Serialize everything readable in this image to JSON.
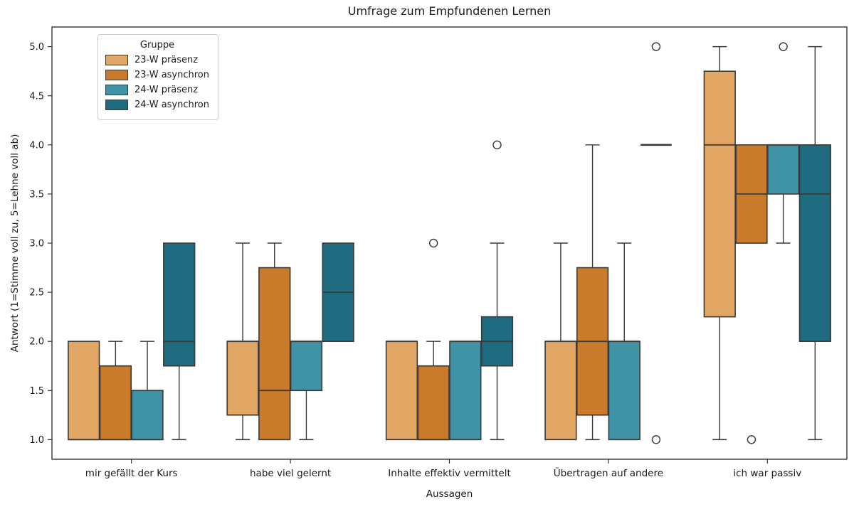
{
  "chart_data": {
    "type": "boxplot",
    "title": "Umfrage zum Empfundenen Lernen",
    "xlabel": "Aussagen",
    "ylabel": "Antwort (1=Stimme voll zu, 5=Lehne voll ab)",
    "ylim": [
      0.8,
      5.2
    ],
    "yticks": [
      1.0,
      1.5,
      2.0,
      2.5,
      3.0,
      3.5,
      4.0,
      4.5,
      5.0
    ],
    "grid": false,
    "legend": {
      "title": "Gruppe",
      "position": "upper-left"
    },
    "colors": {
      "line": "#3a3a3a",
      "spine": "#262626",
      "text": "#1a1a1a"
    },
    "groups": [
      {
        "name": "23-W präsenz",
        "color": "#e2a664"
      },
      {
        "name": "23-W asynchron",
        "color": "#c97b2b"
      },
      {
        "name": "24-W präsenz",
        "color": "#3f93a5"
      },
      {
        "name": "24-W asynchron",
        "color": "#1f6b80"
      }
    ],
    "categories": [
      "mir gefällt der Kurs",
      "habe viel gelernt",
      "Inhalte effektiv vermittelt",
      "Übertragen auf andere",
      "ich war passiv"
    ],
    "boxes": [
      [
        {
          "whislo": 1,
          "q1": 1,
          "med": 1,
          "q3": 2,
          "whishi": 2,
          "fliers": []
        },
        {
          "whislo": 1,
          "q1": 1,
          "med": 1,
          "q3": 1.75,
          "whishi": 2,
          "fliers": []
        },
        {
          "whislo": 1,
          "q1": 1,
          "med": 1,
          "q3": 1.5,
          "whishi": 2,
          "fliers": []
        },
        {
          "whislo": 1,
          "q1": 1.75,
          "med": 2,
          "q3": 3,
          "whishi": 3,
          "fliers": []
        }
      ],
      [
        {
          "whislo": 1,
          "q1": 1.25,
          "med": 2,
          "q3": 2,
          "whishi": 3,
          "fliers": []
        },
        {
          "whislo": 1,
          "q1": 1,
          "med": 1.5,
          "q3": 2.75,
          "whishi": 3,
          "fliers": []
        },
        {
          "whislo": 1,
          "q1": 1.5,
          "med": 2,
          "q3": 2,
          "whishi": 2,
          "fliers": []
        },
        {
          "whislo": 2,
          "q1": 2,
          "med": 2.5,
          "q3": 3,
          "whishi": 3,
          "fliers": []
        }
      ],
      [
        {
          "whislo": 1,
          "q1": 1,
          "med": 2,
          "q3": 2,
          "whishi": 2,
          "fliers": []
        },
        {
          "whislo": 1,
          "q1": 1,
          "med": 1,
          "q3": 1.75,
          "whishi": 2,
          "fliers": [
            3
          ]
        },
        {
          "whislo": 1,
          "q1": 1,
          "med": 2,
          "q3": 2,
          "whishi": 2,
          "fliers": []
        },
        {
          "whislo": 1,
          "q1": 1.75,
          "med": 2,
          "q3": 2.25,
          "whishi": 3,
          "fliers": [
            4
          ]
        }
      ],
      [
        {
          "whislo": 1,
          "q1": 1,
          "med": 2,
          "q3": 2,
          "whishi": 3,
          "fliers": []
        },
        {
          "whislo": 1,
          "q1": 1.25,
          "med": 2,
          "q3": 2.75,
          "whishi": 4,
          "fliers": []
        },
        {
          "whislo": 1,
          "q1": 1,
          "med": 2,
          "q3": 2,
          "whishi": 3,
          "fliers": []
        },
        {
          "whislo": 4,
          "q1": 4,
          "med": 4,
          "q3": 4,
          "whishi": 4,
          "fliers": [
            5,
            1
          ]
        }
      ],
      [
        {
          "whislo": 1,
          "q1": 2.25,
          "med": 4,
          "q3": 4.75,
          "whishi": 5,
          "fliers": []
        },
        {
          "whislo": 3,
          "q1": 3,
          "med": 3.5,
          "q3": 4,
          "whishi": 4,
          "fliers": [
            1
          ]
        },
        {
          "whislo": 3,
          "q1": 3.5,
          "med": 4,
          "q3": 4,
          "whishi": 4,
          "fliers": [
            5
          ]
        },
        {
          "whislo": 1,
          "q1": 2,
          "med": 3.5,
          "q3": 4,
          "whishi": 5,
          "fliers": []
        }
      ]
    ]
  }
}
